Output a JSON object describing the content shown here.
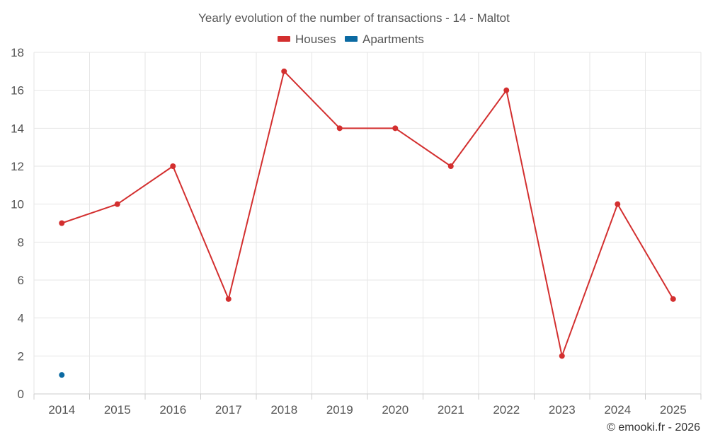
{
  "chart_data": {
    "type": "line",
    "title": "Yearly evolution of the number of transactions - 14 - Maltot",
    "categories": [
      "2014",
      "2015",
      "2016",
      "2017",
      "2018",
      "2019",
      "2020",
      "2021",
      "2022",
      "2023",
      "2024",
      "2025"
    ],
    "series": [
      {
        "name": "Houses",
        "color": "#d32f2f",
        "values": [
          9,
          10,
          12,
          5,
          17,
          14,
          14,
          12,
          16,
          2,
          10,
          5
        ]
      },
      {
        "name": "Apartments",
        "color": "#0b6aa2",
        "values": [
          1,
          null,
          null,
          null,
          null,
          null,
          null,
          null,
          null,
          null,
          null,
          null
        ]
      }
    ],
    "ylim": [
      0,
      18
    ],
    "yticks": [
      0,
      2,
      4,
      6,
      8,
      10,
      12,
      14,
      16,
      18
    ],
    "xlabel": "",
    "ylabel": "",
    "grid": true,
    "legend": "top-center"
  },
  "credit": "© emooki.fr - 2026"
}
